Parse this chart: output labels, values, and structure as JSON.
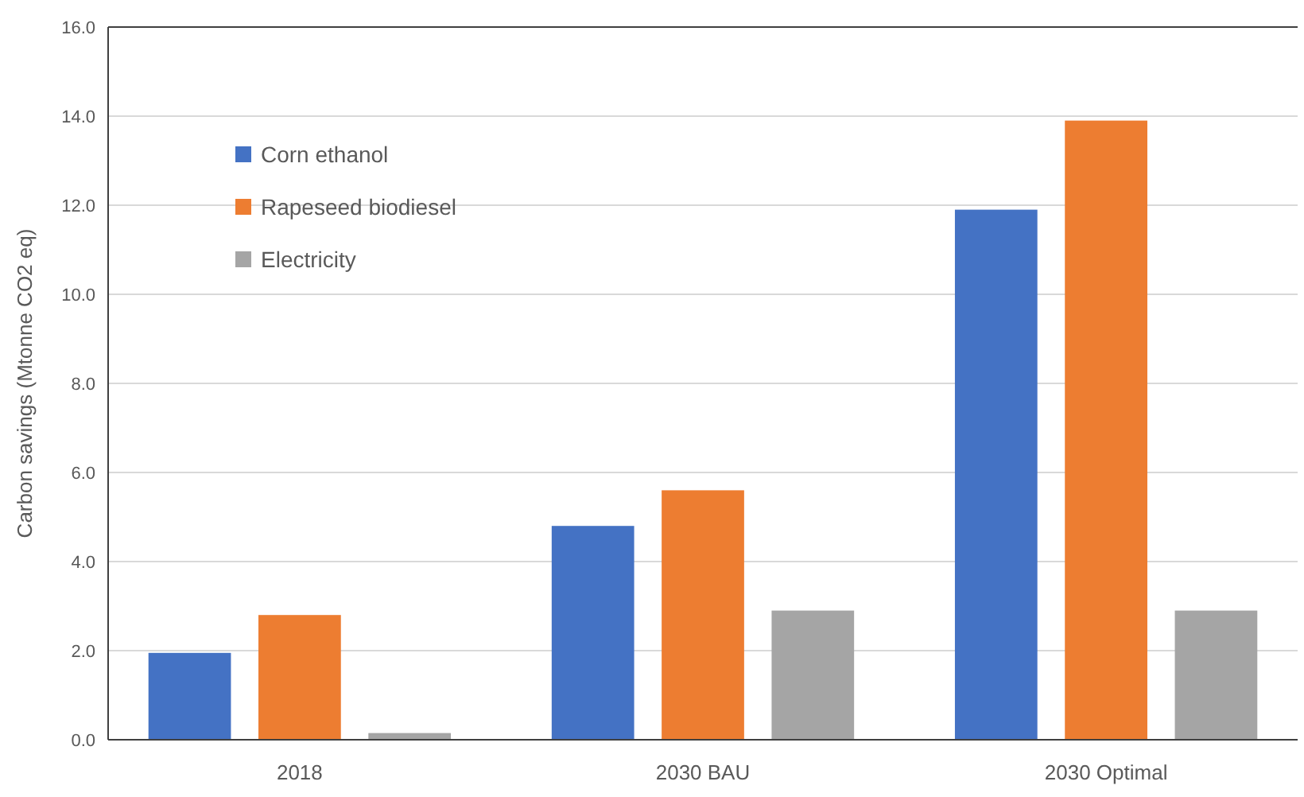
{
  "chart_data": {
    "type": "bar",
    "ylabel": "Carbon savings (Mtonne CO2 eq)",
    "categories": [
      "2018",
      "2030 BAU",
      "2030 Optimal"
    ],
    "series": [
      {
        "name": "Corn ethanol",
        "color": "#4472c4",
        "values": [
          1.95,
          4.8,
          11.9
        ]
      },
      {
        "name": "Rapeseed biodiesel",
        "color": "#ed7d31",
        "values": [
          2.8,
          5.6,
          13.9
        ]
      },
      {
        "name": "Electricity",
        "color": "#a5a5a5",
        "values": [
          0.15,
          2.9,
          2.9
        ]
      }
    ],
    "ylim": [
      0,
      16
    ],
    "yticks": [
      {
        "value": 0,
        "label": "0.0"
      },
      {
        "value": 2,
        "label": "2.0"
      },
      {
        "value": 4,
        "label": "4.0"
      },
      {
        "value": 6,
        "label": "6.0"
      },
      {
        "value": 8,
        "label": "8.0"
      },
      {
        "value": 10,
        "label": "10.0"
      },
      {
        "value": 12,
        "label": "12.0"
      },
      {
        "value": 14,
        "label": "14.0"
      },
      {
        "value": 16,
        "label": "16.0"
      }
    ],
    "grid": "y",
    "legend": "top left"
  }
}
